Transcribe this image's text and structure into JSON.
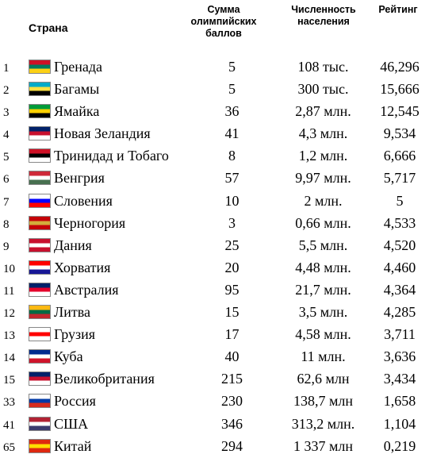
{
  "header": {
    "country": "Страна",
    "points_lines": [
      "Сумма",
      "олимпийских",
      "баллов"
    ],
    "population_lines": [
      "Численность",
      "населения"
    ],
    "rating": "Рейтинг"
  },
  "rows": [
    {
      "rank": "1",
      "country": "Гренада",
      "points": "5",
      "population": "108 тыс.",
      "rating": "46,296",
      "flag_icon": "grenada-flag-icon",
      "flag_colors": [
        "#ce1126",
        "#007a5e",
        "#fcd116"
      ]
    },
    {
      "rank": "2",
      "country": "Багамы",
      "points": "5",
      "population": "300 тыс.",
      "rating": "15,666",
      "flag_icon": "bahamas-flag-icon",
      "flag_colors": [
        "#00abc9",
        "#fae042",
        "#000000"
      ]
    },
    {
      "rank": "3",
      "country": "Ямайка",
      "points": "36",
      "population": "2,87 млн.",
      "rating": "12,545",
      "flag_icon": "jamaica-flag-icon",
      "flag_colors": [
        "#009b3a",
        "#fed100",
        "#000000"
      ]
    },
    {
      "rank": "4",
      "country": "Новая Зеландия",
      "points": "41",
      "population": "4,3 млн.",
      "rating": "9,534",
      "flag_icon": "new-zealand-flag-icon",
      "flag_colors": [
        "#012169",
        "#c8102e",
        "#ffffff"
      ]
    },
    {
      "rank": "5",
      "country": "Тринидад и Тобаго",
      "points": "8",
      "population": "1,2 млн.",
      "rating": "6,666",
      "flag_icon": "trinidad-tobago-flag-icon",
      "flag_colors": [
        "#ce1126",
        "#000000",
        "#ffffff"
      ]
    },
    {
      "rank": "6",
      "country": "Венгрия",
      "points": "57",
      "population": "9,97 млн.",
      "rating": "5,717",
      "flag_icon": "hungary-flag-icon",
      "flag_colors": [
        "#ce2939",
        "#ffffff",
        "#477050"
      ]
    },
    {
      "rank": "7",
      "country": "Словения",
      "points": "10",
      "population": "2 млн.",
      "rating": "5",
      "flag_icon": "slovenia-flag-icon",
      "flag_colors": [
        "#ffffff",
        "#0000ff",
        "#ff0000"
      ]
    },
    {
      "rank": "8",
      "country": "Черногория",
      "points": "3",
      "population": "0,66 млн.",
      "rating": "4,533",
      "flag_icon": "montenegro-flag-icon",
      "flag_colors": [
        "#c40308",
        "#d3ae3b",
        "#c40308"
      ]
    },
    {
      "rank": "9",
      "country": "Дания",
      "points": "25",
      "population": "5,5 млн.",
      "rating": "4,520",
      "flag_icon": "denmark-flag-icon",
      "flag_colors": [
        "#c8102e",
        "#ffffff",
        "#c8102e"
      ]
    },
    {
      "rank": "10",
      "country": "Хорватия",
      "points": "20",
      "population": "4,48 млн.",
      "rating": "4,460",
      "flag_icon": "croatia-flag-icon",
      "flag_colors": [
        "#ff0000",
        "#ffffff",
        "#171796"
      ]
    },
    {
      "rank": "11",
      "country": "Австралия",
      "points": "95",
      "population": "21,7 млн.",
      "rating": "4,364",
      "flag_icon": "australia-flag-icon",
      "flag_colors": [
        "#012169",
        "#e4002b",
        "#ffffff"
      ]
    },
    {
      "rank": "12",
      "country": "Литва",
      "points": "15",
      "population": "3,5 млн.",
      "rating": "4,285",
      "flag_icon": "lithuania-flag-icon",
      "flag_colors": [
        "#fdb913",
        "#006a44",
        "#c1272d"
      ]
    },
    {
      "rank": "13",
      "country": "Грузия",
      "points": "17",
      "population": "4,58 млн.",
      "rating": "3,711",
      "flag_icon": "georgia-flag-icon",
      "flag_colors": [
        "#ffffff",
        "#ff0000",
        "#ffffff"
      ]
    },
    {
      "rank": "14",
      "country": "Куба",
      "points": "40",
      "population": "11 млн.",
      "rating": "3,636",
      "flag_icon": "cuba-flag-icon",
      "flag_colors": [
        "#002a8f",
        "#ffffff",
        "#cf142b"
      ]
    },
    {
      "rank": "15",
      "country": "Великобритания",
      "points": "215",
      "population": "62,6 млн",
      "rating": "3,434",
      "flag_icon": "uk-flag-icon",
      "flag_colors": [
        "#012169",
        "#c8102e",
        "#ffffff"
      ]
    },
    {
      "rank": "33",
      "country": "Россия",
      "points": "230",
      "population": "138,7 млн",
      "rating": "1,658",
      "flag_icon": "russia-flag-icon",
      "flag_colors": [
        "#ffffff",
        "#0039a6",
        "#d52b1e"
      ]
    },
    {
      "rank": "41",
      "country": "США",
      "points": "346",
      "population": "313,2 млн.",
      "rating": "1,104",
      "flag_icon": "usa-flag-icon",
      "flag_colors": [
        "#b22234",
        "#ffffff",
        "#3c3b6e"
      ]
    },
    {
      "rank": "65",
      "country": "Китай",
      "points": "294",
      "population": "1 337 млн",
      "rating": "0,219",
      "flag_icon": "china-flag-icon",
      "flag_colors": [
        "#de2910",
        "#ffde00",
        "#de2910"
      ]
    }
  ]
}
